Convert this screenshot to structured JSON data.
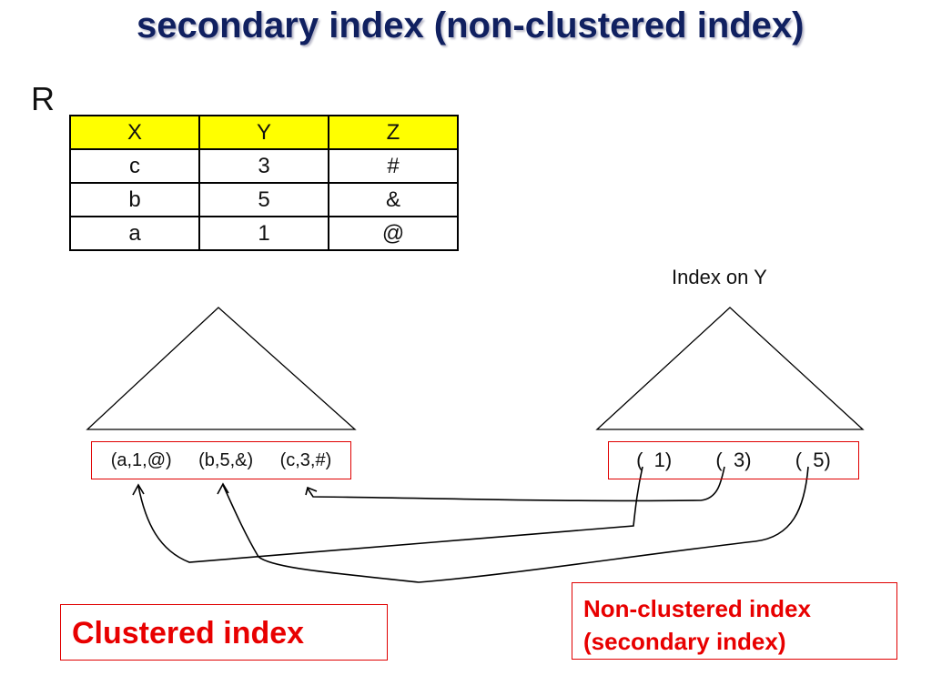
{
  "title": "secondary index (non-clustered index)",
  "relation": {
    "name": "R",
    "columns": [
      "X",
      "Y",
      "Z"
    ],
    "rows": [
      [
        "c",
        "3",
        "#"
      ],
      [
        "b",
        "5",
        "&"
      ],
      [
        "a",
        "1",
        "@"
      ]
    ]
  },
  "index_label": "Index on Y",
  "clustered_leaves": [
    "(a,1,@)",
    "(b,5,&)",
    "(c,3,#)"
  ],
  "secondary_leaves": [
    "(  1)",
    "(  3)",
    "(  5)"
  ],
  "callouts": {
    "clustered": "Clustered index",
    "nonclustered_line1": "Non-clustered index",
    "nonclustered_line2": "(secondary index)"
  },
  "colors": {
    "title": "#102060",
    "header_fill": "#ffff00",
    "callout": "#e80000"
  }
}
